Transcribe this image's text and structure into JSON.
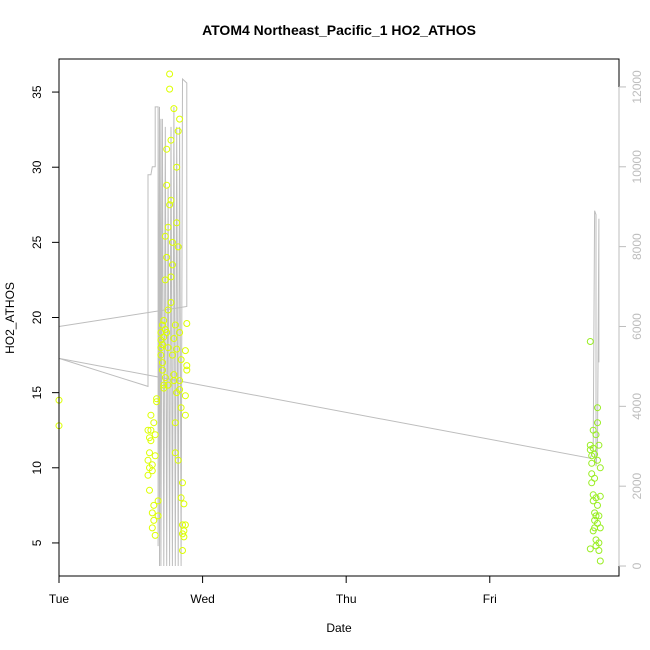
{
  "chart_data": {
    "type": "scatter",
    "title": "ATOM4 Northeast_Pacific_1 HO2_ATHOS",
    "xlabel": "Date",
    "ylabel": "HO2_ATHOS",
    "x_tick_labels": [
      "Tue",
      "Wed",
      "Thu",
      "Fri"
    ],
    "xlim": [
      0.0,
      3.9
    ],
    "ylim": [
      2.8,
      37.2
    ],
    "y_ticks": [
      5,
      10,
      15,
      20,
      25,
      30,
      35
    ],
    "y2lim": [
      -250,
      12700
    ],
    "y2_ticks": [
      0,
      2000,
      4000,
      6000,
      8000,
      10000,
      12000
    ],
    "grid": false,
    "legend": "none",
    "colors": {
      "axis": "#000000",
      "secondary_line": "#bdbdbd",
      "secondary_axis": "#bdbdbd",
      "points_day1": "#ddff00",
      "points_day4": "#99ee22"
    },
    "series": [
      {
        "kind": "points",
        "color": "#ddff00",
        "points": [
          [
            0.0,
            14.5
          ],
          [
            0.0,
            12.8
          ],
          [
            0.62,
            12.5
          ],
          [
            0.62,
            10.5
          ],
          [
            0.62,
            9.5
          ],
          [
            0.63,
            12.0
          ],
          [
            0.63,
            11.0
          ],
          [
            0.63,
            10.0
          ],
          [
            0.64,
            13.5
          ],
          [
            0.64,
            12.5
          ],
          [
            0.64,
            11.8
          ],
          [
            0.65,
            10.2
          ],
          [
            0.65,
            7.0
          ],
          [
            0.65,
            6.0
          ],
          [
            0.66,
            13.0
          ],
          [
            0.66,
            7.5
          ],
          [
            0.66,
            6.5
          ],
          [
            0.67,
            5.5
          ],
          [
            0.67,
            12.2
          ],
          [
            0.68,
            14.4
          ],
          [
            0.68,
            14.6
          ],
          [
            0.69,
            7.8
          ],
          [
            0.69,
            6.8
          ],
          [
            0.71,
            19.0
          ],
          [
            0.71,
            18.5
          ],
          [
            0.71,
            18.0
          ],
          [
            0.72,
            19.5
          ],
          [
            0.72,
            17.0
          ],
          [
            0.72,
            16.5
          ],
          [
            0.73,
            18.7
          ],
          [
            0.73,
            15.3
          ],
          [
            0.73,
            15.5
          ],
          [
            0.74,
            19.2
          ],
          [
            0.74,
            25.4
          ],
          [
            0.74,
            22.5
          ],
          [
            0.75,
            28.8
          ],
          [
            0.75,
            31.2
          ],
          [
            0.75,
            24.0
          ],
          [
            0.75,
            19.0
          ],
          [
            0.76,
            26.0
          ],
          [
            0.76,
            18.0
          ],
          [
            0.76,
            15.5
          ],
          [
            0.77,
            27.5
          ],
          [
            0.77,
            36.2
          ],
          [
            0.77,
            35.2
          ],
          [
            0.78,
            27.8
          ],
          [
            0.78,
            31.8
          ],
          [
            0.78,
            22.7
          ],
          [
            0.79,
            25.0
          ],
          [
            0.79,
            23.5
          ],
          [
            0.79,
            17.5
          ],
          [
            0.8,
            33.9
          ],
          [
            0.8,
            18.6
          ],
          [
            0.8,
            15.8
          ],
          [
            0.81,
            19.5
          ],
          [
            0.81,
            13.0
          ],
          [
            0.81,
            11.0
          ],
          [
            0.82,
            30.0
          ],
          [
            0.82,
            26.3
          ],
          [
            0.82,
            15.0
          ],
          [
            0.83,
            32.4
          ],
          [
            0.83,
            24.7
          ],
          [
            0.83,
            10.5
          ],
          [
            0.84,
            33.2
          ],
          [
            0.84,
            19.0
          ],
          [
            0.84,
            15.2
          ],
          [
            0.85,
            17.2
          ],
          [
            0.85,
            14.0
          ],
          [
            0.85,
            8.0
          ],
          [
            0.86,
            6.2
          ],
          [
            0.86,
            5.6
          ],
          [
            0.86,
            4.5
          ],
          [
            0.87,
            7.6
          ],
          [
            0.87,
            5.8
          ],
          [
            0.87,
            5.4
          ],
          [
            0.88,
            17.8
          ],
          [
            0.88,
            13.5
          ],
          [
            0.88,
            6.2
          ],
          [
            0.89,
            19.6
          ],
          [
            0.89,
            16.5
          ],
          [
            0.89,
            16.8
          ],
          [
            0.71,
            17.5
          ],
          [
            0.72,
            18.2
          ],
          [
            0.73,
            19.8
          ],
          [
            0.74,
            16.0
          ],
          [
            0.76,
            20.5
          ],
          [
            0.78,
            21.0
          ],
          [
            0.8,
            16.2
          ],
          [
            0.82,
            17.9
          ],
          [
            0.84,
            15.8
          ],
          [
            0.86,
            9.0
          ],
          [
            0.88,
            14.8
          ],
          [
            0.63,
            8.5
          ],
          [
            0.65,
            9.8
          ],
          [
            0.67,
            10.8
          ]
        ]
      },
      {
        "kind": "points",
        "color": "#99ee22",
        "points": [
          [
            3.7,
            18.4
          ],
          [
            3.7,
            11.5
          ],
          [
            3.7,
            11.2
          ],
          [
            3.71,
            10.8
          ],
          [
            3.71,
            10.3
          ],
          [
            3.71,
            9.6
          ],
          [
            3.72,
            12.5
          ],
          [
            3.72,
            11.3
          ],
          [
            3.72,
            8.2
          ],
          [
            3.72,
            7.8
          ],
          [
            3.73,
            10.9
          ],
          [
            3.73,
            7.0
          ],
          [
            3.73,
            6.5
          ],
          [
            3.73,
            6.0
          ],
          [
            3.74,
            12.2
          ],
          [
            3.74,
            8.0
          ],
          [
            3.74,
            6.8
          ],
          [
            3.74,
            5.2
          ],
          [
            3.74,
            4.8
          ],
          [
            3.75,
            14.0
          ],
          [
            3.75,
            13.0
          ],
          [
            3.75,
            10.5
          ],
          [
            3.75,
            6.3
          ],
          [
            3.76,
            11.5
          ],
          [
            3.76,
            6.8
          ],
          [
            3.76,
            5.0
          ],
          [
            3.76,
            4.5
          ],
          [
            3.77,
            10.0
          ],
          [
            3.77,
            8.1
          ],
          [
            3.77,
            6.0
          ],
          [
            3.77,
            3.8
          ],
          [
            3.7,
            4.6
          ],
          [
            3.71,
            9.0
          ],
          [
            3.72,
            5.8
          ],
          [
            3.73,
            9.3
          ],
          [
            3.75,
            7.5
          ]
        ]
      },
      {
        "kind": "line",
        "axis": "right",
        "color": "#bdbdbd",
        "points": [
          [
            0.0,
            6000
          ],
          [
            0.0,
            5200
          ],
          [
            0.62,
            4500
          ],
          [
            0.62,
            9800
          ],
          [
            0.64,
            9800
          ],
          [
            0.65,
            10000
          ],
          [
            0.67,
            10000
          ],
          [
            0.67,
            11500
          ],
          [
            0.69,
            11500
          ],
          [
            0.69,
            500
          ],
          [
            0.7,
            11500
          ],
          [
            0.7,
            0
          ],
          [
            0.71,
            11200
          ],
          [
            0.71,
            0
          ],
          [
            0.72,
            11200
          ],
          [
            0.73,
            0
          ],
          [
            0.74,
            11000
          ],
          [
            0.75,
            0
          ],
          [
            0.76,
            9500
          ],
          [
            0.77,
            0
          ],
          [
            0.78,
            11000
          ],
          [
            0.79,
            0
          ],
          [
            0.8,
            11500
          ],
          [
            0.81,
            0
          ],
          [
            0.82,
            11000
          ],
          [
            0.83,
            0
          ],
          [
            0.84,
            11000
          ],
          [
            0.85,
            0
          ],
          [
            0.86,
            12200
          ],
          [
            0.89,
            12100
          ],
          [
            0.89,
            6500
          ],
          [
            0.0,
            6000
          ]
        ]
      },
      {
        "kind": "line",
        "axis": "right",
        "color": "#bdbdbd",
        "points": [
          [
            0.0,
            5200
          ],
          [
            3.7,
            2700
          ],
          [
            3.72,
            2900
          ],
          [
            3.73,
            8900
          ],
          [
            3.74,
            8800
          ],
          [
            3.74,
            2500
          ],
          [
            3.75,
            3000
          ],
          [
            3.76,
            8700
          ],
          [
            3.76,
            5100
          ]
        ]
      }
    ]
  }
}
